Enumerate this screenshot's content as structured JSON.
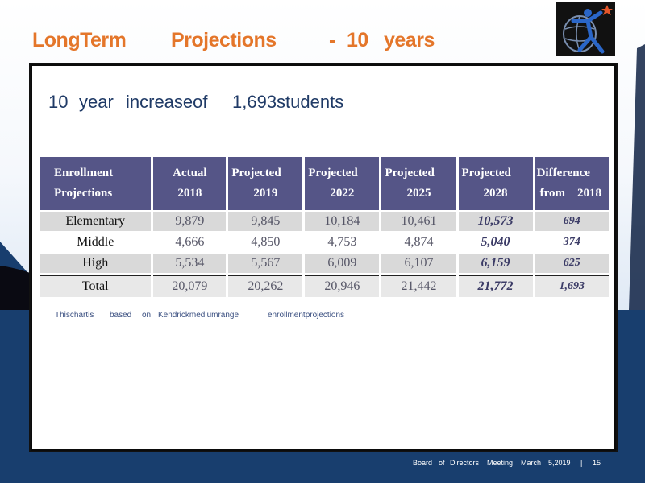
{
  "slide": {
    "title_words": [
      "LongTerm",
      "Projections",
      "-",
      "10",
      "years"
    ],
    "subtitle_words": [
      "10",
      "year",
      "increaseof",
      "1,693students"
    ],
    "note_words": [
      "Thischartis",
      "based",
      "on",
      "Kendrickmediumrange",
      "enrollmentprojections"
    ],
    "footer_words": [
      "Board",
      "of",
      "Directors",
      "Meeting",
      "March",
      "5,2019",
      "|",
      "15"
    ]
  },
  "table": {
    "headers": [
      [
        "Enrollment",
        "Projections"
      ],
      [
        "Actual",
        "2018"
      ],
      [
        "Projected",
        "2019"
      ],
      [
        "Projected",
        "2022"
      ],
      [
        "Projected",
        "2025"
      ],
      [
        "Projected",
        "2028"
      ],
      [
        "Difference",
        "from    2018"
      ]
    ],
    "rows": [
      [
        "Elementary",
        "9,879",
        "9,845",
        "10,184",
        "10,461",
        "10,573",
        "694"
      ],
      [
        "Middle",
        "4,666",
        "4,850",
        "4,753",
        "4,874",
        "5,040",
        "374"
      ],
      [
        "High",
        "5,534",
        "5,567",
        "6,009",
        "6,107",
        "6,159",
        "625"
      ],
      [
        "Total",
        "20,079",
        "20,262",
        "20,946",
        "21,442",
        "21,772",
        "1,693"
      ]
    ]
  },
  "colors": {
    "title": "#e4762a",
    "header_bg": "#555587",
    "bottom_band": "#183e6e",
    "subtitle": "#1f3a66"
  },
  "icons": {
    "logo": "figure-globe-star-logo"
  }
}
